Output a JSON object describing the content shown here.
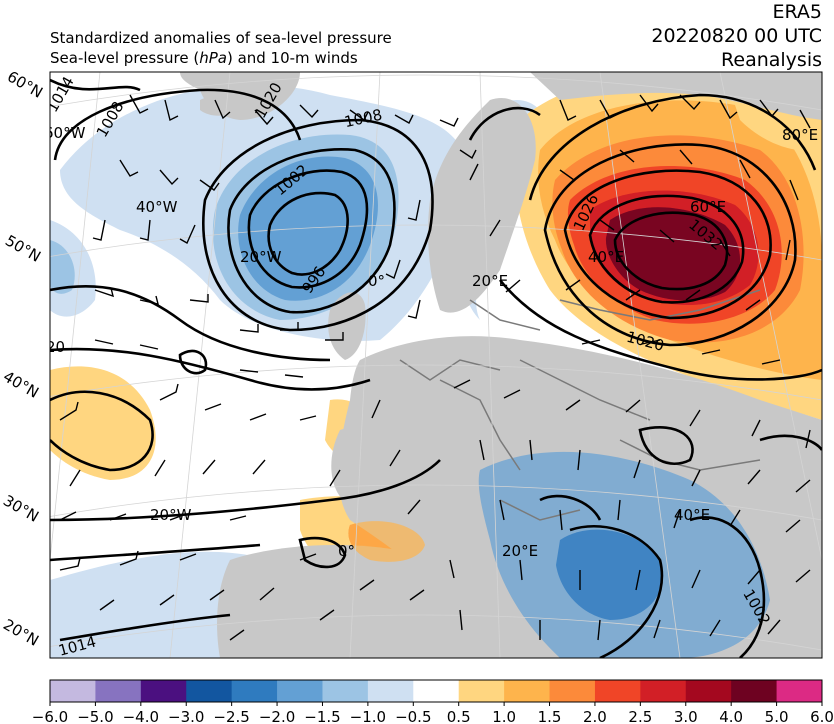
{
  "header": {
    "line1": "Standardized anomalies of sea-level pressure",
    "line2_pre": "Sea-level pressure (",
    "line2_unit": "hPa",
    "line2_post": ") and 10-m winds",
    "source": "ERA5",
    "datetime": "20220820 00 UTC",
    "kind": "Reanalysis"
  },
  "latitude_labels": [
    "60°N",
    "50°N",
    "40°N",
    "30°N",
    "20°N"
  ],
  "gridline_labels": [
    "60°W",
    "40°W",
    "20°W",
    "0°",
    "20°E",
    "60°E",
    "40°E",
    "80°E",
    "20°W",
    "0°",
    "20°E",
    "40°E"
  ],
  "contour_labels": [
    "1014",
    "1008",
    "1020",
    "1008",
    "1002",
    "996",
    "1026",
    "1032",
    "1020",
    "20",
    "1014",
    "1002"
  ],
  "colorbar": {
    "ticks": [
      "−6.0",
      "−5.0",
      "−4.0",
      "−3.0",
      "−2.5",
      "−2.0",
      "−1.5",
      "−1.0",
      "−0.5",
      "0.5",
      "1.0",
      "1.5",
      "2.0",
      "2.5",
      "3.0",
      "4.0",
      "5.0",
      "6.0"
    ],
    "colors": [
      "#c4b9e0",
      "#8773c0",
      "#4b1080",
      "#1256a0",
      "#2f7bbf",
      "#63a0d4",
      "#9cc4e4",
      "#cfe0f2",
      "#ffffff",
      "#ffd680",
      "#feb44c",
      "#fc8a3a",
      "#f04527",
      "#d21f26",
      "#a4081f",
      "#6e0221",
      "#dc2a84",
      "#d39ed2"
    ]
  },
  "colors": {
    "land": "#c8c8c8",
    "ocean": "#ffffff",
    "contour": "#000000",
    "border": "#7a7a7a"
  }
}
